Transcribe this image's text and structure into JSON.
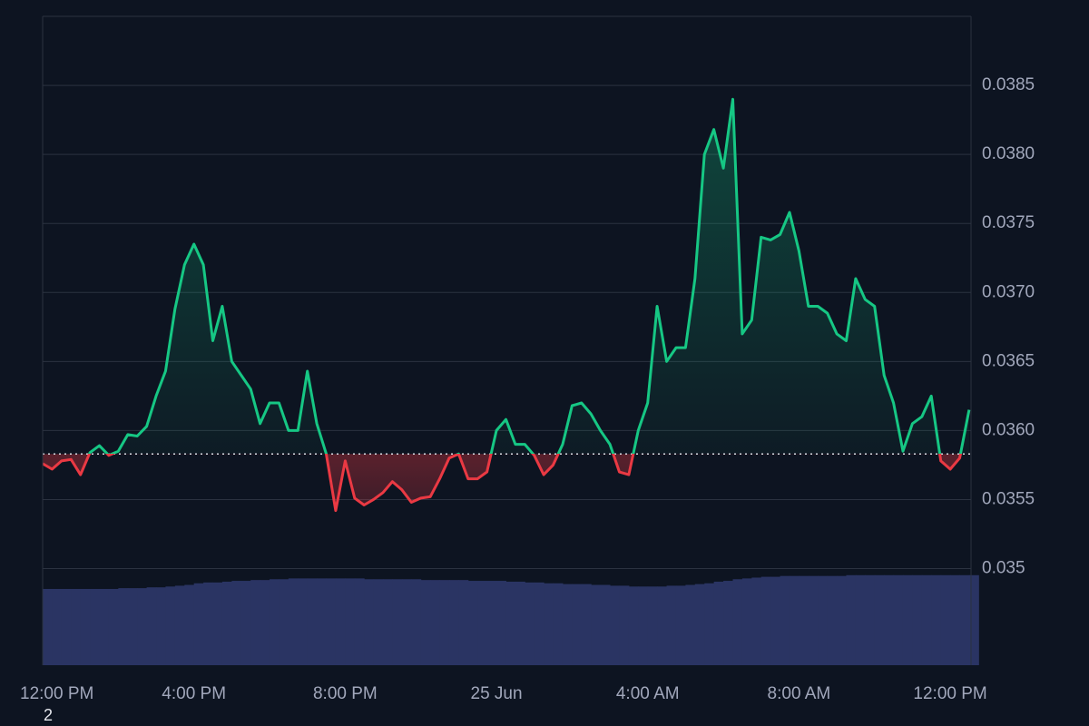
{
  "chart_data": {
    "type": "baseline-line",
    "x": [
      0,
      0.25,
      0.5,
      0.75,
      1,
      1.25,
      1.5,
      1.75,
      2,
      2.25,
      2.5,
      2.75,
      3,
      3.25,
      3.5,
      3.75,
      4,
      4.25,
      4.5,
      4.75,
      5,
      5.25,
      5.5,
      5.75,
      6,
      6.25,
      6.5,
      6.75,
      7,
      7.25,
      7.5,
      7.75,
      8,
      8.25,
      8.5,
      8.75,
      9,
      9.25,
      9.5,
      9.75,
      10,
      10.25,
      10.5,
      10.75,
      11,
      11.25,
      11.5,
      11.75,
      12,
      12.25,
      12.5,
      12.75,
      13,
      13.25,
      13.5,
      13.75,
      14,
      14.25,
      14.5,
      14.75,
      15,
      15.25,
      15.5,
      15.75,
      16,
      16.25,
      16.5,
      16.75,
      17,
      17.25,
      17.5,
      17.75,
      18,
      18.25,
      18.5,
      18.75,
      19,
      19.25,
      19.5,
      19.75,
      20,
      20.25,
      20.5,
      20.75,
      21,
      21.25,
      21.5,
      21.75,
      22,
      22.25,
      22.5,
      22.75,
      23,
      23.25,
      23.5,
      23.75,
      24,
      24.25,
      24.5
    ],
    "series": [
      {
        "above_color": "#16c784",
        "below_color": "#ea3943",
        "values": [
          0.03576,
          0.03572,
          0.03578,
          0.03579,
          0.03568,
          0.03584,
          0.03589,
          0.03582,
          0.03585,
          0.03597,
          0.03596,
          0.03603,
          0.03625,
          0.03643,
          0.03688,
          0.0372,
          0.03735,
          0.0372,
          0.03665,
          0.0369,
          0.0365,
          0.0364,
          0.0363,
          0.03605,
          0.0362,
          0.0362,
          0.036,
          0.036,
          0.03643,
          0.03605,
          0.03583,
          0.03542,
          0.03578,
          0.03551,
          0.03546,
          0.0355,
          0.03555,
          0.03563,
          0.03557,
          0.03548,
          0.03551,
          0.03552,
          0.03565,
          0.0358,
          0.03583,
          0.03565,
          0.03565,
          0.0357,
          0.036,
          0.03608,
          0.0359,
          0.0359,
          0.03582,
          0.03568,
          0.03575,
          0.0359,
          0.03618,
          0.0362,
          0.03612,
          0.036,
          0.0359,
          0.0357,
          0.03568,
          0.036,
          0.0362,
          0.0369,
          0.0365,
          0.0366,
          0.0366,
          0.0371,
          0.038,
          0.03818,
          0.0379,
          0.0384,
          0.0367,
          0.0368,
          0.0374,
          0.03738,
          0.03742,
          0.03758,
          0.0373,
          0.0369,
          0.0369,
          0.03685,
          0.0367,
          0.03665,
          0.0371,
          0.03695,
          0.0369,
          0.0364,
          0.0362,
          0.03585,
          0.03605,
          0.0361,
          0.03625,
          0.03578,
          0.03572,
          0.0358,
          0.03615
        ]
      }
    ],
    "baseline": 0.03583,
    "volume": {
      "color": "#2a3463",
      "ylim": [
        0,
        800
      ],
      "values": [
        94,
        94,
        94,
        94,
        94,
        94,
        94,
        94,
        95,
        95,
        95,
        96,
        96,
        97,
        98,
        99,
        101,
        102,
        102,
        103,
        104,
        104,
        105,
        105,
        106,
        106,
        107,
        107,
        107,
        107,
        107,
        107,
        107,
        107,
        106,
        106,
        106,
        106,
        106,
        106,
        105,
        105,
        105,
        105,
        105,
        104,
        104,
        104,
        104,
        103,
        103,
        102,
        102,
        101,
        101,
        100,
        100,
        100,
        99,
        99,
        98,
        98,
        97,
        97,
        97,
        97,
        98,
        98,
        99,
        100,
        101,
        103,
        104,
        106,
        107,
        108,
        109,
        109,
        110,
        110,
        110,
        110,
        110,
        110,
        110,
        111,
        111,
        111,
        111,
        111,
        111,
        111,
        111,
        111,
        111,
        111,
        111,
        111,
        111
      ]
    },
    "xlim": [
      0,
      24.55
    ],
    "xticks": [
      {
        "value": 0,
        "label": "12:00 PM"
      },
      {
        "value": 4,
        "label": "4:00 PM"
      },
      {
        "value": 8,
        "label": "8:00 PM"
      },
      {
        "value": 12,
        "label": "25 Jun"
      },
      {
        "value": 16,
        "label": "4:00 AM"
      },
      {
        "value": 20,
        "label": "8:00 AM"
      },
      {
        "value": 24,
        "label": "12:00 PM"
      }
    ],
    "ylim": [
      0.0343,
      0.039
    ],
    "yticks": [
      0.035,
      0.0355,
      {
        "value": 0.036,
        "label": "0.0360"
      },
      0.0365,
      {
        "value": 0.037,
        "label": "0.0370"
      },
      0.0375,
      {
        "value": 0.038,
        "label": "0.0380"
      },
      0.0385
    ],
    "grid": true,
    "footnote": "2"
  }
}
